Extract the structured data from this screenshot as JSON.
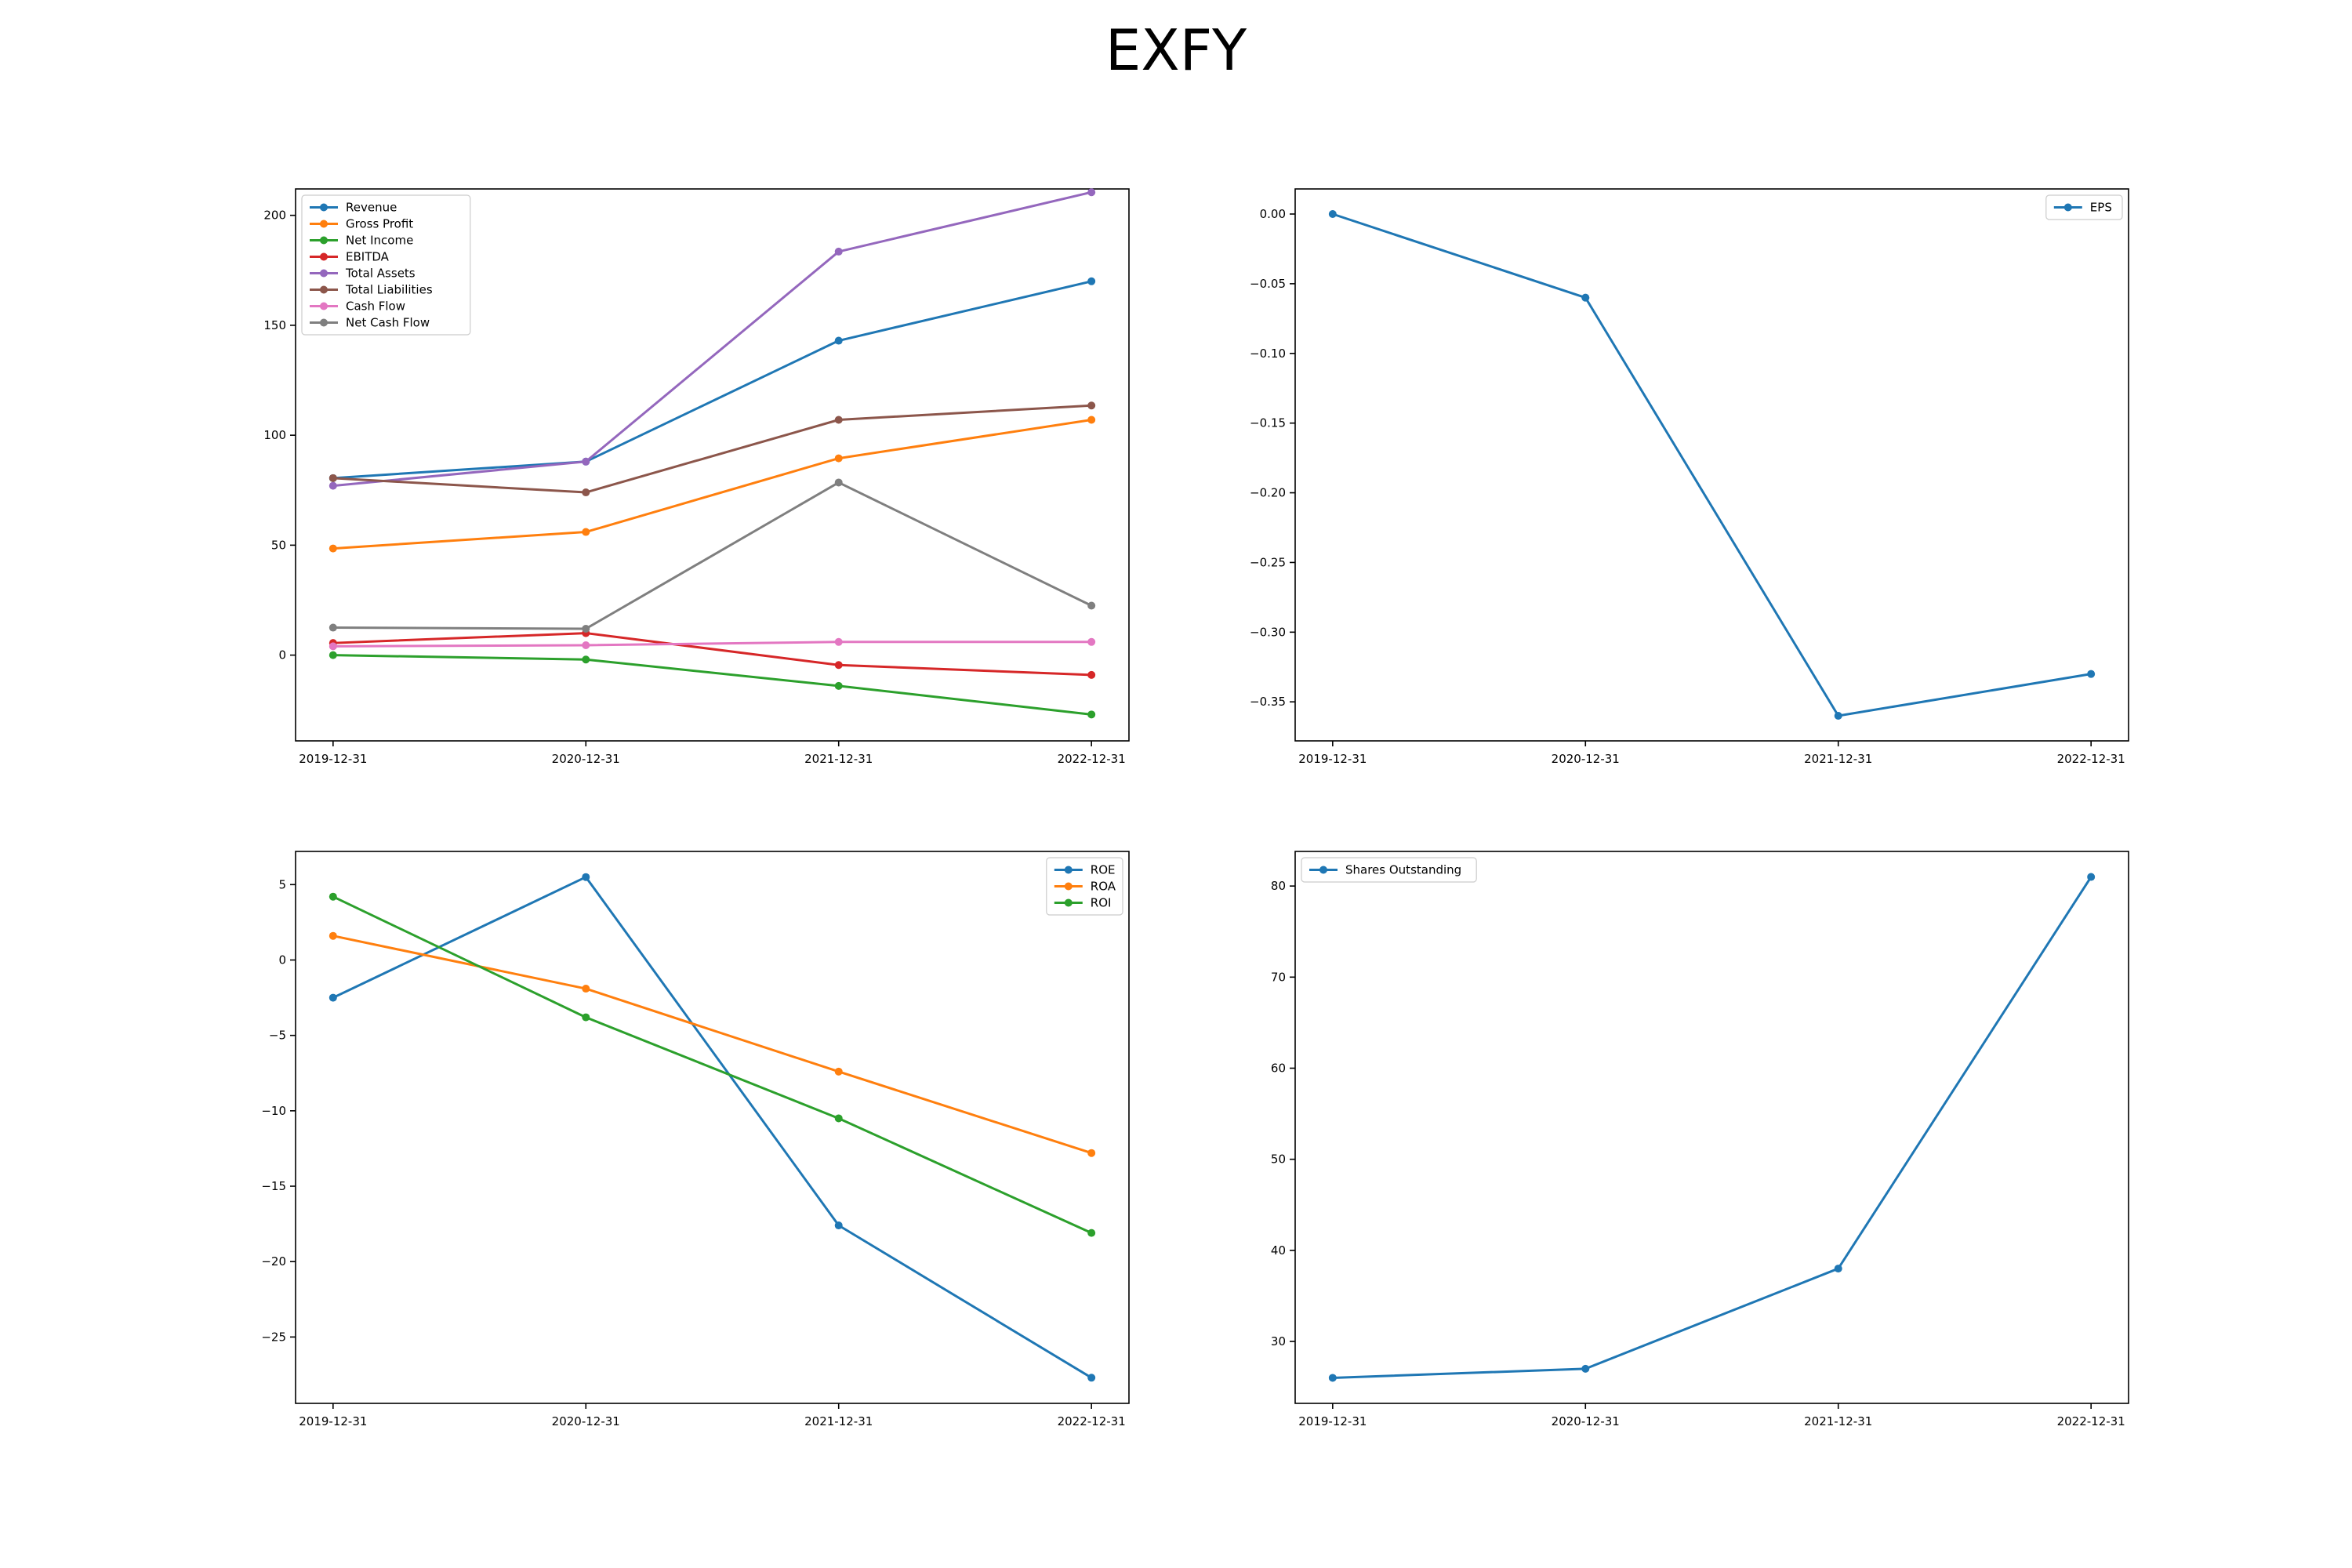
{
  "figure": {
    "title": "EXFY"
  },
  "chart_data": [
    {
      "type": "line",
      "categories": [
        "2019-12-31",
        "2020-12-31",
        "2021-12-31",
        "2022-12-31"
      ],
      "ylim": [
        -39,
        212
      ],
      "yticks": [
        0,
        50,
        100,
        150,
        200
      ],
      "legend": "top-left",
      "series": [
        {
          "name": "Revenue",
          "color": "#1f77b4",
          "values": [
            80.5,
            88.0,
            143.0,
            170.0
          ]
        },
        {
          "name": "Gross Profit",
          "color": "#ff7f0e",
          "values": [
            48.5,
            56.0,
            89.5,
            107.0
          ]
        },
        {
          "name": "Net Income",
          "color": "#2ca02c",
          "values": [
            0.0,
            -2.0,
            -14.0,
            -27.0
          ]
        },
        {
          "name": "EBITDA",
          "color": "#d62728",
          "values": [
            5.5,
            10.0,
            -4.5,
            -9.0
          ]
        },
        {
          "name": "Total Assets",
          "color": "#9467bd",
          "values": [
            77.0,
            88.0,
            183.5,
            210.5
          ]
        },
        {
          "name": "Total Liabilities",
          "color": "#8c564b",
          "values": [
            80.5,
            74.0,
            107.0,
            113.5
          ]
        },
        {
          "name": "Cash Flow",
          "color": "#e377c2",
          "values": [
            4.0,
            4.5,
            6.0,
            6.0
          ]
        },
        {
          "name": "Net Cash Flow",
          "color": "#7f7f7f",
          "values": [
            12.5,
            12.0,
            78.5,
            22.5
          ]
        }
      ]
    },
    {
      "type": "line",
      "categories": [
        "2019-12-31",
        "2020-12-31",
        "2021-12-31",
        "2022-12-31"
      ],
      "ylim": [
        -0.378,
        0.018
      ],
      "yticks": [
        0.0,
        -0.05,
        -0.1,
        -0.15,
        -0.2,
        -0.25,
        -0.3,
        -0.35
      ],
      "ytick_labels": [
        "0.00",
        "−0.05",
        "−0.10",
        "−0.15",
        "−0.20",
        "−0.25",
        "−0.30",
        "−0.35"
      ],
      "legend": "top-right",
      "series": [
        {
          "name": "EPS",
          "color": "#1f77b4",
          "values": [
            0.0,
            -0.06,
            -0.36,
            -0.33
          ]
        }
      ]
    },
    {
      "type": "line",
      "categories": [
        "2019-12-31",
        "2020-12-31",
        "2021-12-31",
        "2022-12-31"
      ],
      "ylim": [
        -29.4,
        7.2
      ],
      "yticks": [
        5,
        0,
        -5,
        -10,
        -15,
        -20,
        -25
      ],
      "ytick_labels": [
        "5",
        "0",
        "−5",
        "−10",
        "−15",
        "−20",
        "−25"
      ],
      "legend": "top-right",
      "series": [
        {
          "name": "ROE",
          "color": "#1f77b4",
          "values": [
            -2.5,
            5.5,
            -17.6,
            -27.7
          ]
        },
        {
          "name": "ROA",
          "color": "#ff7f0e",
          "values": [
            1.6,
            -1.9,
            -7.4,
            -12.8
          ]
        },
        {
          "name": "ROI",
          "color": "#2ca02c",
          "values": [
            4.2,
            -3.8,
            -10.5,
            -18.1
          ]
        }
      ]
    },
    {
      "type": "line",
      "categories": [
        "2019-12-31",
        "2020-12-31",
        "2021-12-31",
        "2022-12-31"
      ],
      "ylim": [
        23.2,
        83.8
      ],
      "yticks": [
        30,
        40,
        50,
        60,
        70,
        80
      ],
      "legend": "top-left",
      "series": [
        {
          "name": "Shares Outstanding",
          "color": "#1f77b4",
          "values": [
            26.0,
            27.0,
            38.0,
            81.0
          ]
        }
      ]
    }
  ]
}
